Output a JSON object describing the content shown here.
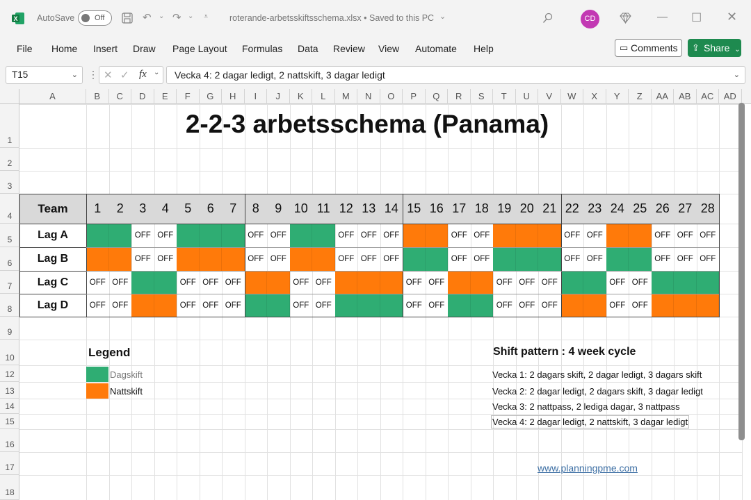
{
  "window": {
    "autosave_label": "AutoSave",
    "autosave_state": "Off",
    "filename": "roterande-arbetsskiftsschema.xlsx • Saved to this PC",
    "user_initials": "CD",
    "app_icon": "excel-icon"
  },
  "menu": [
    "File",
    "Home",
    "Insert",
    "Draw",
    "Page Layout",
    "Formulas",
    "Data",
    "Review",
    "View",
    "Automate",
    "Help"
  ],
  "buttons": {
    "comments": "Comments",
    "share": "Share"
  },
  "formula_bar": {
    "name_box": "T15",
    "formula": "Vecka 4: 2 dagar ledigt, 2 nattskift, 3 dagar ledigt"
  },
  "columns": [
    "A",
    "B",
    "C",
    "D",
    "E",
    "F",
    "G",
    "H",
    "I",
    "J",
    "K",
    "L",
    "M",
    "N",
    "O",
    "P",
    "Q",
    "R",
    "S",
    "T",
    "U",
    "V",
    "W",
    "X",
    "Y",
    "Z",
    "AA",
    "AB",
    "AC",
    "AD"
  ],
  "rows": [
    "1",
    "2",
    "3",
    "4",
    "5",
    "6",
    "7",
    "8",
    "9",
    "10",
    "12",
    "13",
    "14",
    "15",
    "16",
    "17",
    "18"
  ],
  "sheet": {
    "title": "2-2-3 arbetsschema (Panama)",
    "team_header": "Team",
    "days": [
      "1",
      "2",
      "3",
      "4",
      "5",
      "6",
      "7",
      "8",
      "9",
      "10",
      "11",
      "12",
      "13",
      "14",
      "15",
      "16",
      "17",
      "18",
      "19",
      "20",
      "21",
      "22",
      "23",
      "24",
      "25",
      "26",
      "27",
      "28"
    ],
    "off_label": "OFF",
    "teams": [
      {
        "name": "Lag A",
        "schedule": "GGooGGGooGGoooNNooNNNooNNooo"
      },
      {
        "name": "Lag B",
        "schedule": "NNooNNNooNNoooGGooGGGooGGooo"
      },
      {
        "name": "Lag C",
        "schedule": "ooGGoooNNooNNNooNNoooGGooGGG"
      },
      {
        "name": "Lag D",
        "schedule": "ooNNoooGGooGGGooGGoooNNooNNN"
      }
    ],
    "legend": {
      "title": "Legend",
      "items": [
        {
          "label": "Dagskift",
          "color": "#2fad73"
        },
        {
          "label": "Nattskift",
          "color": "#ff7a0a"
        }
      ]
    },
    "pattern": {
      "title": "Shift pattern : 4 week cycle",
      "lines": [
        "Vecka 1: 2 dagars skift, 2 dagar ledigt, 3 dagars skift",
        "Vecka 2: 2 dagar ledigt, 2 dagars skift, 3 dagar ledigt",
        "Vecka 3: 2 nattpass, 2 lediga dagar, 3 nattpass",
        "Vecka 4: 2 dagar ledigt, 2 nattskift, 3 dagar ledigt"
      ]
    },
    "link": "www.planningpme.com"
  },
  "colors": {
    "day_shift": "#2fad73",
    "night_shift": "#ff7a0a",
    "header_fill": "#d9d9d9",
    "accent": "#1e8a4f"
  }
}
